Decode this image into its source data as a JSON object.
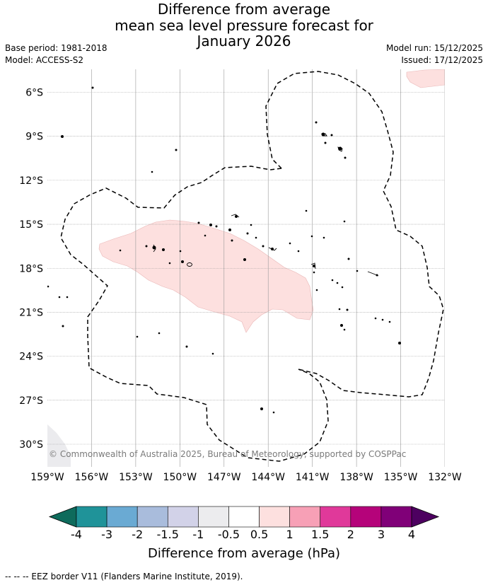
{
  "title": {
    "line1": "Difference from average",
    "line2": "mean sea level pressure forecast for",
    "line3": "January 2026"
  },
  "meta": {
    "base_period": "Base period: 1981-2018",
    "model": "Model: ACCESS-S2",
    "model_run": "Model run: 15/12/2025",
    "issued": "Issued: 17/12/2025"
  },
  "map": {
    "copyright": "© Commonwealth of Australia 2025, Bureau of Meteorology, supported by COSPPac",
    "lat_labels": [
      "6°S",
      "9°S",
      "12°S",
      "15°S",
      "18°S",
      "21°S",
      "24°S",
      "27°S",
      "30°S"
    ],
    "lon_labels": [
      "159°W",
      "156°W",
      "153°W",
      "150°W",
      "147°W",
      "144°W",
      "141°W",
      "138°W",
      "135°W",
      "132°W"
    ],
    "colors": {
      "positive_anomaly": "#fde0df",
      "negative_anomaly": "#ebebee",
      "eez_border": "#000000",
      "grid": "#9a9a9a"
    }
  },
  "colorbar": {
    "title": "Difference from average (hPa)",
    "labels": [
      "-4",
      "-3",
      "-2",
      "-1.5",
      "-1",
      "-0.5",
      "0.5",
      "1",
      "1.5",
      "2",
      "3",
      "4"
    ],
    "colors": [
      "#0e6b5c",
      "#1f9399",
      "#6aaad3",
      "#a9bcdc",
      "#d2d2e8",
      "#ececee",
      "#ffffff",
      "#fde0df",
      "#f7a0b6",
      "#e0399a",
      "#b5037a",
      "#800078",
      "#4d0060"
    ]
  },
  "footer": {
    "legend": "--  --  -- EEZ border V11 (Flanders Marine Institute, 2019)."
  }
}
